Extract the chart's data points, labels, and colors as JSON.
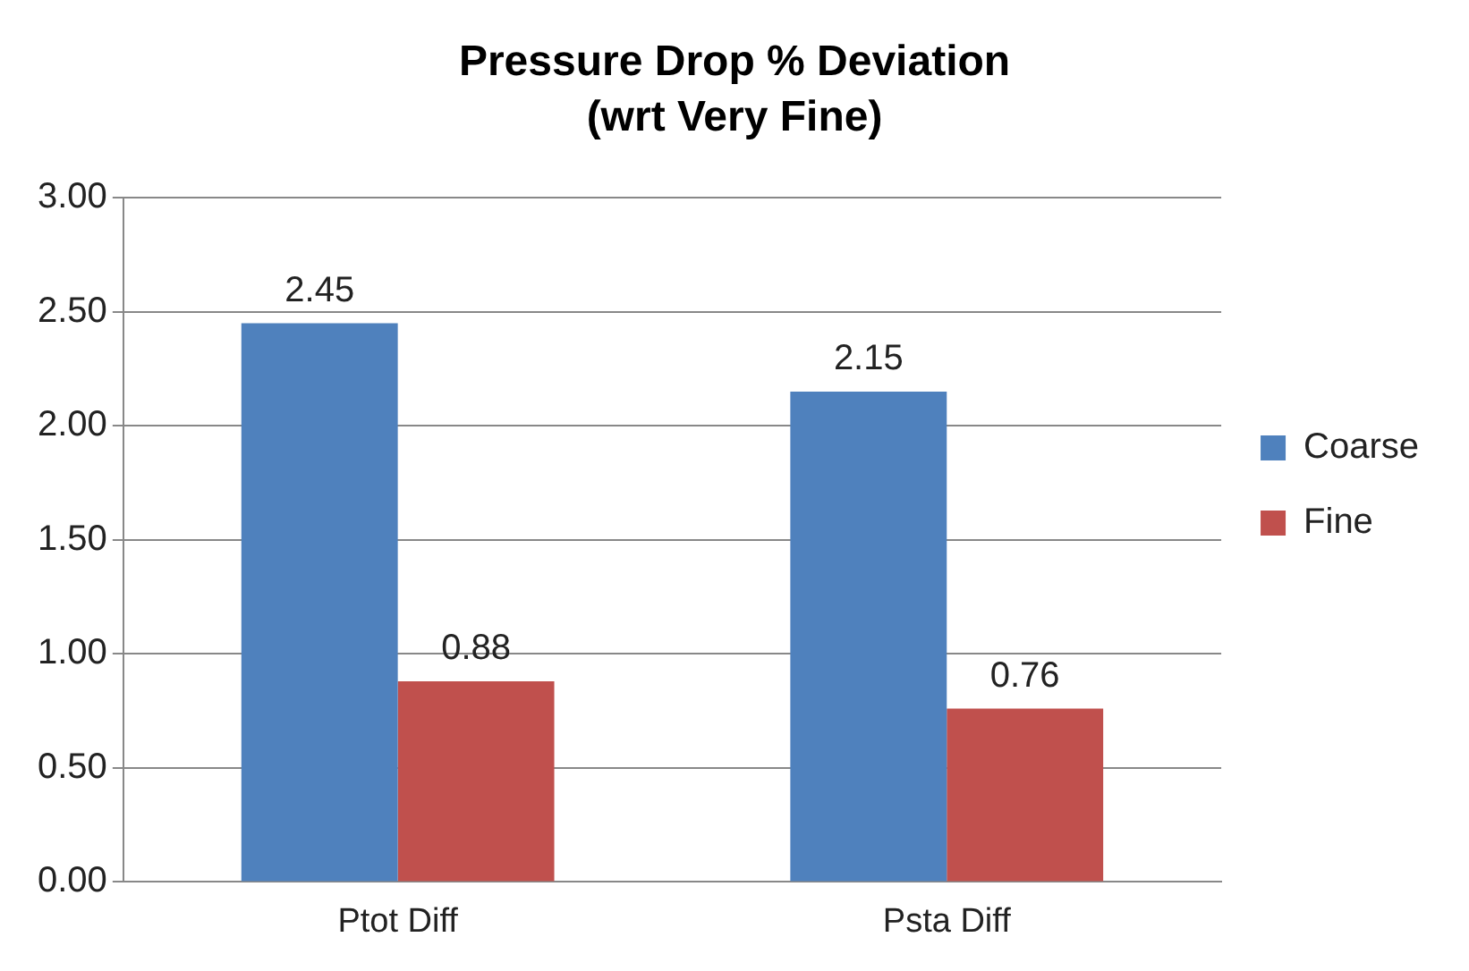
{
  "chart_data": {
    "type": "bar",
    "title": "Pressure Drop % Deviation",
    "subtitle": "(wrt Very Fine)",
    "categories": [
      "Ptot Diff",
      "Psta Diff"
    ],
    "series": [
      {
        "name": "Coarse",
        "color": "#4f81bd",
        "values": [
          2.45,
          2.15
        ]
      },
      {
        "name": "Fine",
        "color": "#c0504d",
        "values": [
          0.88,
          0.76
        ]
      }
    ],
    "ylim": [
      0,
      3
    ],
    "yticks": [
      {
        "value": 0,
        "label": "0.00"
      },
      {
        "value": 0.5,
        "label": "0.50"
      },
      {
        "value": 1,
        "label": "1.00"
      },
      {
        "value": 1.5,
        "label": "1.50"
      },
      {
        "value": 2,
        "label": "2.00"
      },
      {
        "value": 2.5,
        "label": "2.50"
      },
      {
        "value": 3,
        "label": "3.00"
      }
    ],
    "grid": "y",
    "legend": "right",
    "data_labels": true
  }
}
